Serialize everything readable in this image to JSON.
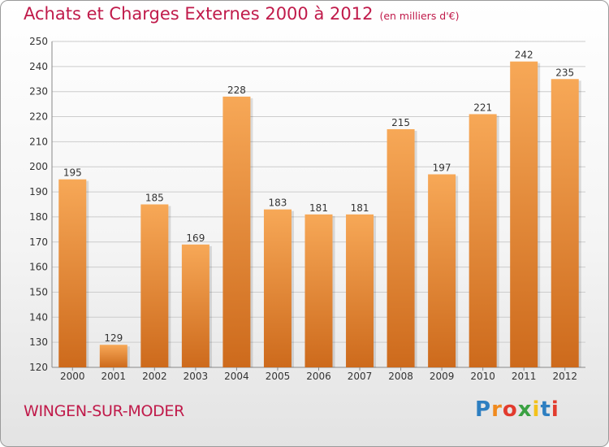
{
  "header": {
    "title": "Achats et Charges Externes 2000 à 2012",
    "unit": "(en milliers d'€)"
  },
  "footer": {
    "commune": "WINGEN-SUR-MODER",
    "logo_letters": [
      "P",
      "r",
      "o",
      "x",
      "i",
      "t",
      "i"
    ],
    "logo_colors": [
      "#2e7fc1",
      "#f08a1e",
      "#e23b2e",
      "#3aa142",
      "#f3c21b",
      "#2e7fc1",
      "#e23b2e"
    ]
  },
  "colors": {
    "bar_top": "#f7a857",
    "bar_bottom": "#cd6a1c",
    "accent": "#c01a4a",
    "grid": "#cccccc",
    "text": "#333333"
  },
  "chart_data": {
    "type": "bar",
    "categories": [
      "2000",
      "2001",
      "2002",
      "2003",
      "2004",
      "2005",
      "2006",
      "2007",
      "2008",
      "2009",
      "2010",
      "2011",
      "2012"
    ],
    "values": [
      195,
      129,
      185,
      169,
      228,
      183,
      181,
      181,
      215,
      197,
      221,
      242,
      235
    ],
    "ylim": [
      120,
      250
    ],
    "yticks": [
      120,
      130,
      140,
      150,
      160,
      170,
      180,
      190,
      200,
      210,
      220,
      230,
      240,
      250
    ],
    "grid": true,
    "title": "Achats et Charges Externes 2000 à 2012",
    "xlabel": "",
    "ylabel": ""
  }
}
